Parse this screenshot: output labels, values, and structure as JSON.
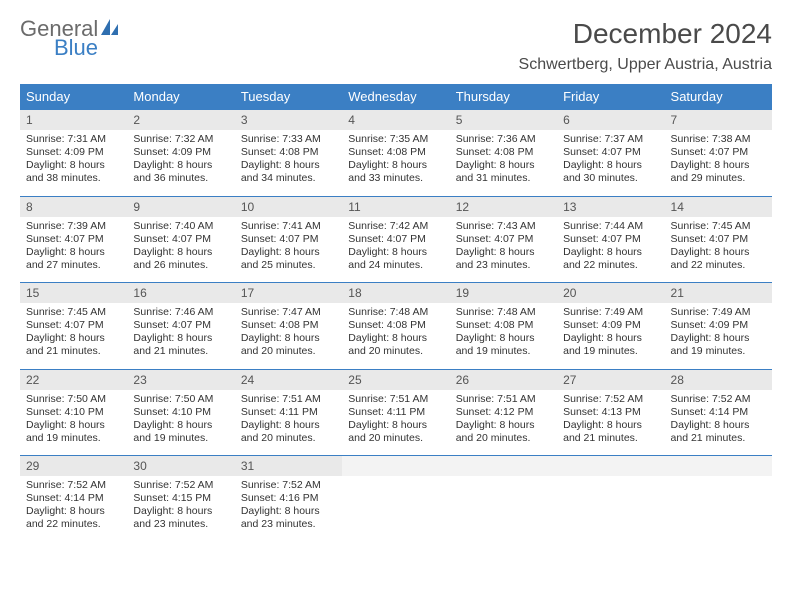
{
  "brand": {
    "word1": "General",
    "word2": "Blue"
  },
  "title": "December 2024",
  "subtitle": "Schwertberg, Upper Austria, Austria",
  "colors": {
    "header_bg": "#3b7fc4",
    "header_text": "#ffffff",
    "daynum_bg": "#e9e9e9",
    "border": "#3b7fc4",
    "body_text": "#333333"
  },
  "day_labels": [
    "Sunday",
    "Monday",
    "Tuesday",
    "Wednesday",
    "Thursday",
    "Friday",
    "Saturday"
  ],
  "weeks": [
    {
      "nums": [
        "1",
        "2",
        "3",
        "4",
        "5",
        "6",
        "7"
      ],
      "cells": [
        {
          "sunrise": "7:31 AM",
          "sunset": "4:09 PM",
          "daylight": "8 hours and 38 minutes."
        },
        {
          "sunrise": "7:32 AM",
          "sunset": "4:09 PM",
          "daylight": "8 hours and 36 minutes."
        },
        {
          "sunrise": "7:33 AM",
          "sunset": "4:08 PM",
          "daylight": "8 hours and 34 minutes."
        },
        {
          "sunrise": "7:35 AM",
          "sunset": "4:08 PM",
          "daylight": "8 hours and 33 minutes."
        },
        {
          "sunrise": "7:36 AM",
          "sunset": "4:08 PM",
          "daylight": "8 hours and 31 minutes."
        },
        {
          "sunrise": "7:37 AM",
          "sunset": "4:07 PM",
          "daylight": "8 hours and 30 minutes."
        },
        {
          "sunrise": "7:38 AM",
          "sunset": "4:07 PM",
          "daylight": "8 hours and 29 minutes."
        }
      ]
    },
    {
      "nums": [
        "8",
        "9",
        "10",
        "11",
        "12",
        "13",
        "14"
      ],
      "cells": [
        {
          "sunrise": "7:39 AM",
          "sunset": "4:07 PM",
          "daylight": "8 hours and 27 minutes."
        },
        {
          "sunrise": "7:40 AM",
          "sunset": "4:07 PM",
          "daylight": "8 hours and 26 minutes."
        },
        {
          "sunrise": "7:41 AM",
          "sunset": "4:07 PM",
          "daylight": "8 hours and 25 minutes."
        },
        {
          "sunrise": "7:42 AM",
          "sunset": "4:07 PM",
          "daylight": "8 hours and 24 minutes."
        },
        {
          "sunrise": "7:43 AM",
          "sunset": "4:07 PM",
          "daylight": "8 hours and 23 minutes."
        },
        {
          "sunrise": "7:44 AM",
          "sunset": "4:07 PM",
          "daylight": "8 hours and 22 minutes."
        },
        {
          "sunrise": "7:45 AM",
          "sunset": "4:07 PM",
          "daylight": "8 hours and 22 minutes."
        }
      ]
    },
    {
      "nums": [
        "15",
        "16",
        "17",
        "18",
        "19",
        "20",
        "21"
      ],
      "cells": [
        {
          "sunrise": "7:45 AM",
          "sunset": "4:07 PM",
          "daylight": "8 hours and 21 minutes."
        },
        {
          "sunrise": "7:46 AM",
          "sunset": "4:07 PM",
          "daylight": "8 hours and 21 minutes."
        },
        {
          "sunrise": "7:47 AM",
          "sunset": "4:08 PM",
          "daylight": "8 hours and 20 minutes."
        },
        {
          "sunrise": "7:48 AM",
          "sunset": "4:08 PM",
          "daylight": "8 hours and 20 minutes."
        },
        {
          "sunrise": "7:48 AM",
          "sunset": "4:08 PM",
          "daylight": "8 hours and 19 minutes."
        },
        {
          "sunrise": "7:49 AM",
          "sunset": "4:09 PM",
          "daylight": "8 hours and 19 minutes."
        },
        {
          "sunrise": "7:49 AM",
          "sunset": "4:09 PM",
          "daylight": "8 hours and 19 minutes."
        }
      ]
    },
    {
      "nums": [
        "22",
        "23",
        "24",
        "25",
        "26",
        "27",
        "28"
      ],
      "cells": [
        {
          "sunrise": "7:50 AM",
          "sunset": "4:10 PM",
          "daylight": "8 hours and 19 minutes."
        },
        {
          "sunrise": "7:50 AM",
          "sunset": "4:10 PM",
          "daylight": "8 hours and 19 minutes."
        },
        {
          "sunrise": "7:51 AM",
          "sunset": "4:11 PM",
          "daylight": "8 hours and 20 minutes."
        },
        {
          "sunrise": "7:51 AM",
          "sunset": "4:11 PM",
          "daylight": "8 hours and 20 minutes."
        },
        {
          "sunrise": "7:51 AM",
          "sunset": "4:12 PM",
          "daylight": "8 hours and 20 minutes."
        },
        {
          "sunrise": "7:52 AM",
          "sunset": "4:13 PM",
          "daylight": "8 hours and 21 minutes."
        },
        {
          "sunrise": "7:52 AM",
          "sunset": "4:14 PM",
          "daylight": "8 hours and 21 minutes."
        }
      ]
    },
    {
      "nums": [
        "29",
        "30",
        "31",
        "",
        "",
        "",
        ""
      ],
      "cells": [
        {
          "sunrise": "7:52 AM",
          "sunset": "4:14 PM",
          "daylight": "8 hours and 22 minutes."
        },
        {
          "sunrise": "7:52 AM",
          "sunset": "4:15 PM",
          "daylight": "8 hours and 23 minutes."
        },
        {
          "sunrise": "7:52 AM",
          "sunset": "4:16 PM",
          "daylight": "8 hours and 23 minutes."
        },
        null,
        null,
        null,
        null
      ]
    }
  ]
}
